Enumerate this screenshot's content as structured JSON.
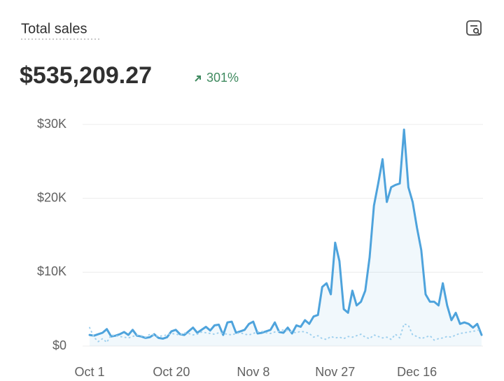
{
  "chart_data": {
    "type": "line",
    "title": "Total sales",
    "total": "$535,209.27",
    "change": "301%",
    "categories": [
      "Oct 1",
      null,
      null,
      null,
      null,
      null,
      null,
      null,
      null,
      null,
      null,
      null,
      null,
      null,
      null,
      null,
      null,
      null,
      null,
      "Oct 20",
      null,
      null,
      null,
      null,
      null,
      null,
      null,
      null,
      null,
      null,
      null,
      null,
      null,
      null,
      null,
      null,
      null,
      null,
      "Nov 8",
      null,
      null,
      null,
      null,
      null,
      null,
      null,
      null,
      null,
      null,
      null,
      null,
      null,
      null,
      null,
      null,
      null,
      null,
      "Nov 27",
      null,
      null,
      null,
      null,
      null,
      null,
      null,
      null,
      null,
      null,
      null,
      null,
      null,
      null,
      null,
      null,
      null,
      null,
      "Dec 16",
      null,
      null,
      null,
      null,
      null,
      null,
      null,
      null,
      null,
      null,
      null,
      null,
      null,
      null,
      null
    ],
    "series": [
      {
        "color": "#4ea3dc",
        "values": [
          1500,
          1400,
          1600,
          1800,
          2300,
          1300,
          1400,
          1600,
          1900,
          1500,
          2200,
          1400,
          1300,
          1100,
          1200,
          1600,
          1100,
          1000,
          1200,
          2000,
          2200,
          1600,
          1500,
          2000,
          2500,
          1800,
          2200,
          2600,
          2100,
          2800,
          2900,
          1500,
          3200,
          3300,
          1800,
          2000,
          2200,
          3000,
          3300,
          1700,
          1800,
          2000,
          2200,
          3200,
          1900,
          1800,
          2500,
          1700,
          2800,
          2600,
          3500,
          3000,
          4000,
          4200,
          8000,
          8500,
          7000,
          14000,
          11500,
          5000,
          4500,
          7500,
          5500,
          6000,
          7500,
          12000,
          19000,
          22000,
          25300,
          19500,
          21500,
          21800,
          22000,
          29300,
          21500,
          19500,
          16000,
          13000,
          7000,
          6000,
          6000,
          5500,
          8500,
          5500,
          3500,
          4500,
          3000,
          3200,
          3000,
          2500,
          3000,
          1500
        ]
      },
      {
        "color": "#9fd0ee",
        "dashed": true,
        "values": [
          2500,
          1200,
          600,
          1000,
          500,
          1500,
          1400,
          1300,
          1200,
          1100,
          1300,
          1500,
          1400,
          1200,
          1600,
          1500,
          1300,
          1400,
          1500,
          1700,
          1600,
          1500,
          1800,
          1700,
          1500,
          1600,
          1900,
          1800,
          1700,
          1600,
          1800,
          1700,
          1600,
          1500,
          1700,
          1800,
          1600,
          1500,
          1700,
          1900,
          2000,
          1800,
          1700,
          1900,
          2000,
          2200,
          2100,
          1900,
          1800,
          2000,
          1900,
          1700,
          1200,
          1400,
          1000,
          900,
          1300,
          1100,
          1200,
          1000,
          1300,
          1200,
          1400,
          1600,
          1200,
          1000,
          1500,
          1300,
          1100,
          1200,
          900,
          1600,
          1100,
          3000,
          2800,
          1500,
          1300,
          1000,
          1200,
          1400,
          800,
          1000,
          1100,
          1300,
          1200,
          1500,
          1700,
          1800,
          1900,
          2000,
          2100,
          2400
        ]
      }
    ],
    "ylim": [
      0,
      30000
    ],
    "yticks": [
      {
        "value": 0,
        "label": "$0"
      },
      {
        "value": 10000,
        "label": "$10K"
      },
      {
        "value": 20000,
        "label": "$20K"
      },
      {
        "value": 30000,
        "label": "$30K"
      }
    ],
    "grid": true
  }
}
